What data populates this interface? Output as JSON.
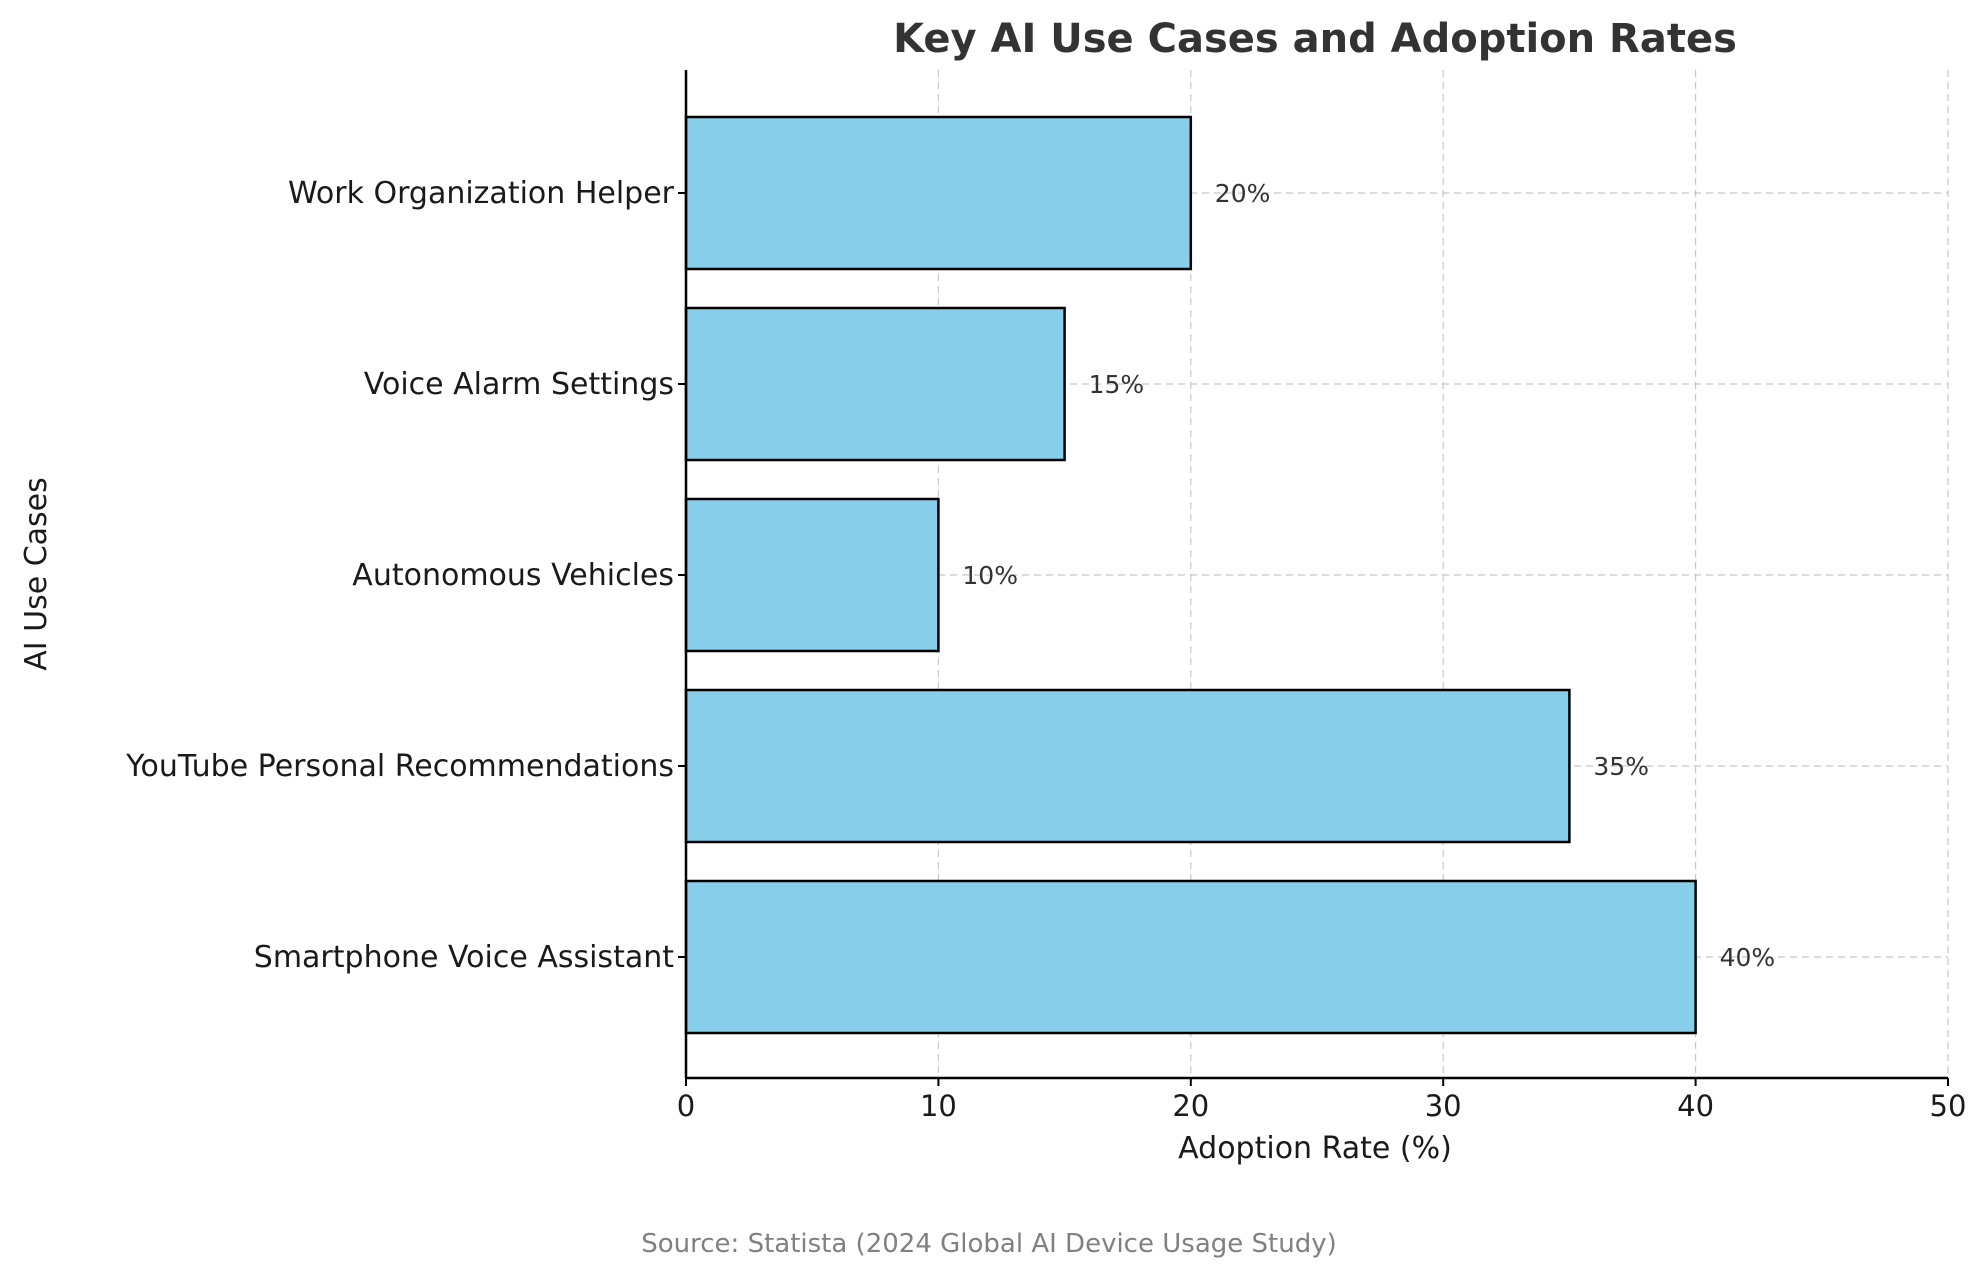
{
  "chart_data": {
    "type": "bar",
    "orientation": "horizontal",
    "title": "Key AI Use Cases and Adoption Rates",
    "xlabel": "Adoption Rate (%)",
    "ylabel": "AI Use Cases",
    "categories": [
      "Smartphone Voice Assistant",
      "YouTube Personal Recommendations",
      "Autonomous Vehicles",
      "Voice Alarm Settings",
      "Work Organization Helper"
    ],
    "values": [
      40,
      35,
      10,
      15,
      20
    ],
    "value_labels": [
      "40%",
      "35%",
      "10%",
      "15%",
      "20%"
    ],
    "xlim": [
      0,
      50
    ],
    "xticks": [
      0,
      10,
      20,
      30,
      40,
      50
    ],
    "xtick_labels": [
      "0",
      "10",
      "20",
      "30",
      "40",
      "50"
    ],
    "grid": true,
    "bar_color": "#87CEEB",
    "bar_edge_color": "#000000",
    "source": "Source: Statista (2024 Global AI Device Usage Study)"
  }
}
